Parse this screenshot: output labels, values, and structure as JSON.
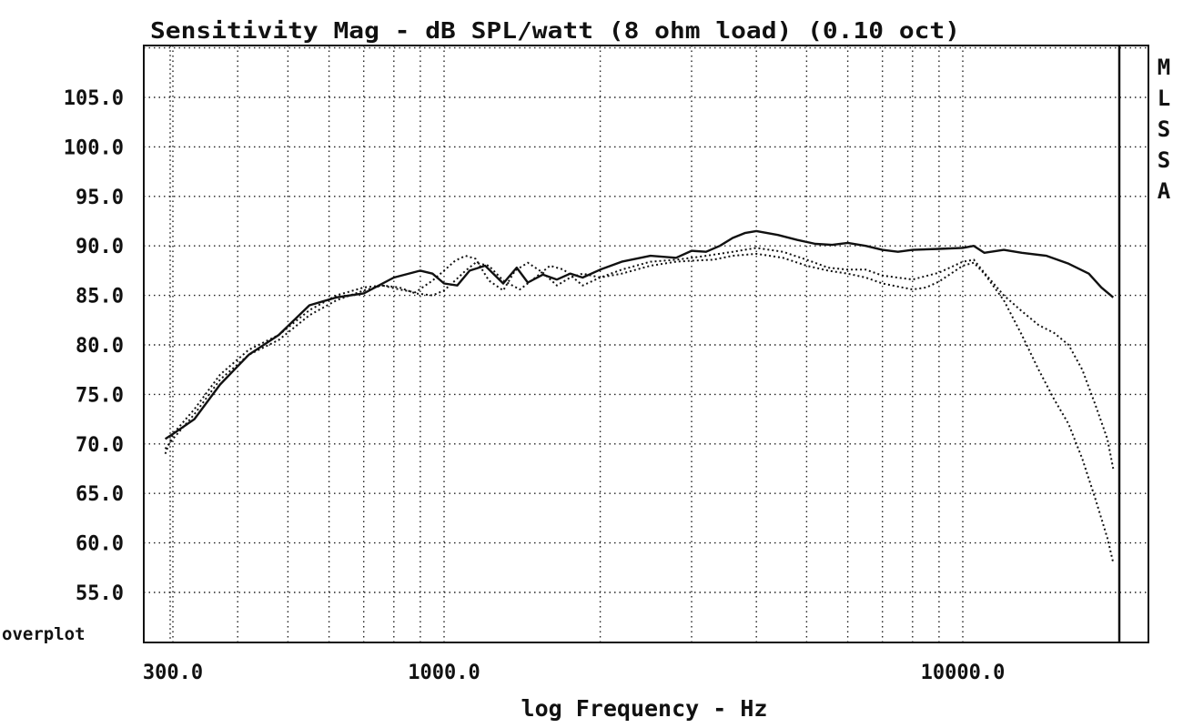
{
  "chart_data": {
    "type": "line",
    "title": "Sensitivity Mag - dB SPL/watt (8 ohm load) (0.10 oct)",
    "xlabel": "log Frequency - Hz",
    "ylabel": "",
    "xscale": "log",
    "xlim": [
      290,
      20000
    ],
    "ylim": [
      50,
      110
    ],
    "x_tick_labels": [
      {
        "value": 300,
        "label": "300.0"
      },
      {
        "value": 1000,
        "label": "1000.0"
      },
      {
        "value": 10000,
        "label": "10000.0"
      }
    ],
    "y_ticks": [
      {
        "value": 105,
        "label": "105.0"
      },
      {
        "value": 100,
        "label": "100.0"
      },
      {
        "value": 95,
        "label": "95.0"
      },
      {
        "value": 90,
        "label": "90.0"
      },
      {
        "value": 85,
        "label": "85.0"
      },
      {
        "value": 80,
        "label": "80.0"
      },
      {
        "value": 75,
        "label": "75.0"
      },
      {
        "value": 70,
        "label": "70.0"
      },
      {
        "value": 65,
        "label": "65.0"
      },
      {
        "value": 60,
        "label": "60.0"
      },
      {
        "value": 55,
        "label": "55.0"
      }
    ],
    "grid": true,
    "side_label": "MLSSA",
    "corner_label": "overplot",
    "series": [
      {
        "style": "solid",
        "x": [
          290,
          300,
          330,
          370,
          420,
          480,
          550,
          620,
          700,
          800,
          900,
          950,
          1000,
          1060,
          1120,
          1200,
          1300,
          1380,
          1450,
          1550,
          1650,
          1750,
          1850,
          2000,
          2200,
          2500,
          2800,
          3000,
          3200,
          3400,
          3600,
          3800,
          4000,
          4400,
          4800,
          5200,
          5600,
          6000,
          6500,
          7000,
          7500,
          8000,
          9000,
          10000,
          10500,
          11000,
          12000,
          13000,
          14500,
          16000,
          17500,
          18500,
          19500
        ],
        "y": [
          70.5,
          71,
          72.5,
          76,
          79,
          81,
          84,
          84.8,
          85.2,
          86.8,
          87.5,
          87.2,
          86.2,
          86,
          87.5,
          88,
          86.2,
          87.8,
          86.3,
          87.1,
          86.6,
          87.2,
          86.8,
          87.6,
          88.4,
          89,
          88.8,
          89.5,
          89.4,
          90,
          90.8,
          91.3,
          91.5,
          91.1,
          90.6,
          90.2,
          90.1,
          90.3,
          90,
          89.6,
          89.4,
          89.6,
          89.7,
          89.8,
          90,
          89.3,
          89.6,
          89.3,
          89,
          88.2,
          87.2,
          85.8,
          84.8
        ]
      },
      {
        "style": "dotted",
        "x": [
          290,
          300,
          330,
          370,
          420,
          480,
          550,
          620,
          700,
          760,
          820,
          880,
          950,
          1000,
          1050,
          1100,
          1150,
          1220,
          1300,
          1370,
          1450,
          1550,
          1650,
          1750,
          1850,
          2000,
          2200,
          2500,
          2800,
          3000,
          3200,
          3600,
          4000,
          4500,
          5000,
          5500,
          6000,
          6500,
          7000,
          8000,
          9000,
          10000,
          10500,
          11000,
          12000,
          13000,
          14000,
          15000,
          16000,
          17000,
          18000,
          19000,
          19500
        ],
        "y": [
          69,
          71,
          73.5,
          77,
          79.5,
          81,
          83.5,
          85,
          85.8,
          86,
          85.6,
          85.3,
          86.5,
          87.5,
          88.5,
          89,
          88.7,
          86.5,
          85.5,
          87.5,
          88.3,
          87.3,
          86,
          86.8,
          87.2,
          86.8,
          87.6,
          88.4,
          88.6,
          88.8,
          89,
          89.4,
          89.8,
          89.4,
          88.6,
          87.8,
          87.6,
          87.6,
          87,
          86.6,
          87.3,
          88.4,
          88.6,
          87.3,
          85,
          83.4,
          82,
          81.2,
          80,
          77.5,
          74,
          70.5,
          67.5
        ]
      },
      {
        "style": "dotted",
        "x": [
          290,
          300,
          330,
          370,
          420,
          480,
          550,
          620,
          700,
          760,
          820,
          880,
          950,
          1000,
          1050,
          1100,
          1150,
          1220,
          1300,
          1400,
          1500,
          1600,
          1700,
          1850,
          2000,
          2200,
          2500,
          2800,
          3000,
          3300,
          3600,
          4000,
          4500,
          5000,
          5500,
          6000,
          6500,
          7000,
          8000,
          8500,
          9000,
          10000,
          10500,
          11000,
          12000,
          13000,
          14000,
          15000,
          16000,
          17000,
          18000,
          19000,
          19500
        ],
        "y": [
          69.5,
          70.5,
          73,
          76.5,
          79,
          80.5,
          83,
          84.5,
          85.5,
          86,
          85.8,
          85.2,
          85,
          85.5,
          86.5,
          87.5,
          88.3,
          88,
          86.5,
          85.6,
          86.8,
          88,
          87.6,
          86,
          86.8,
          87.2,
          88,
          88.4,
          88.5,
          88.6,
          89,
          89.2,
          88.8,
          88,
          87.5,
          87.2,
          86.8,
          86.2,
          85.6,
          85.8,
          86.4,
          88,
          88.3,
          87.2,
          84.5,
          81,
          77.5,
          74.5,
          72,
          68.5,
          64.5,
          60.5,
          58
        ]
      }
    ]
  }
}
